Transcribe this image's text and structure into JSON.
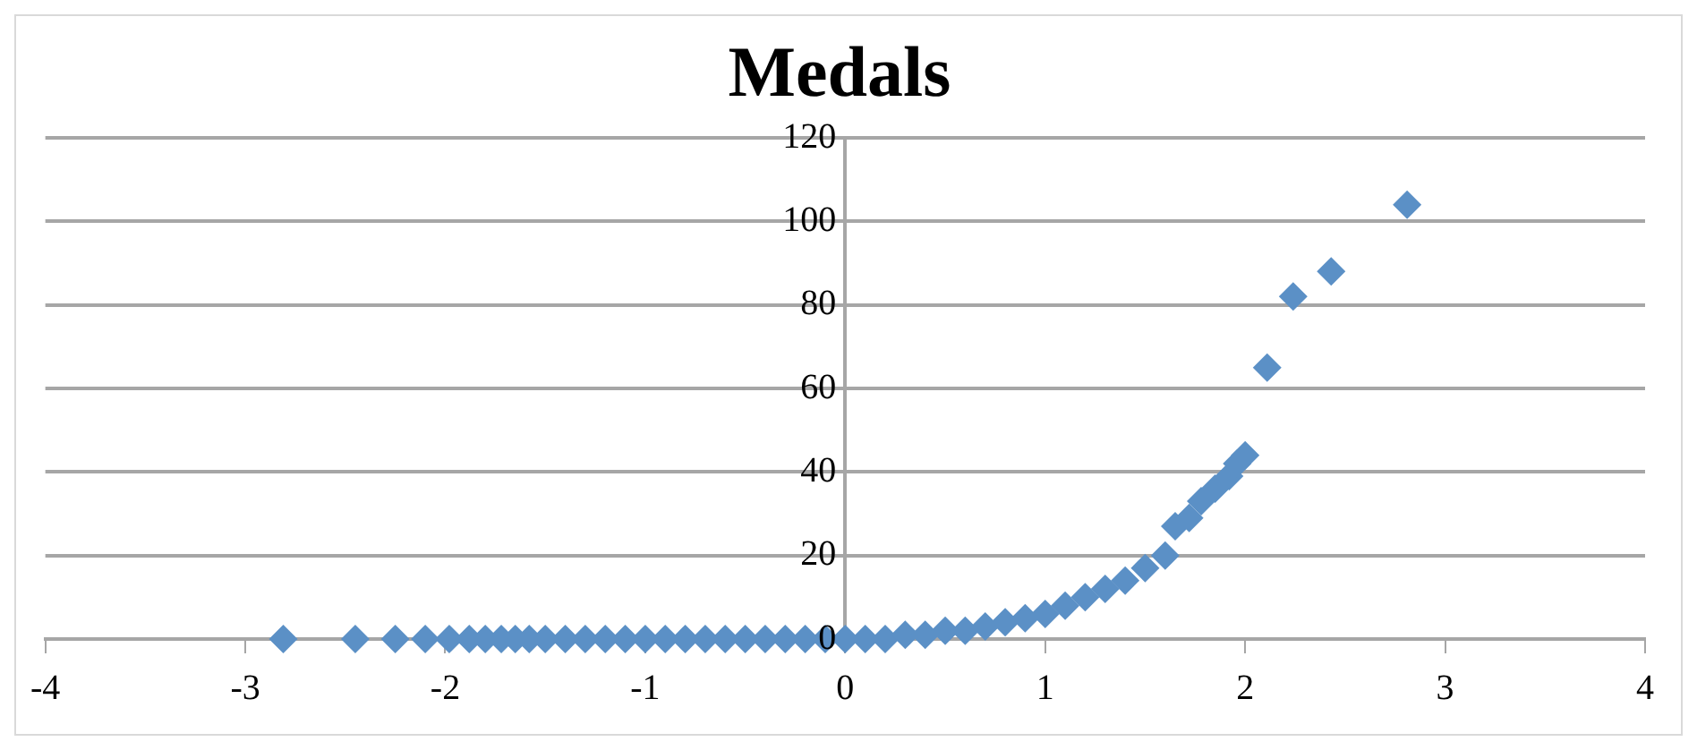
{
  "chart_data": {
    "type": "scatter",
    "title": "Medals",
    "x": [
      -2.81,
      -2.45,
      -2.25,
      -2.1,
      -1.98,
      -1.88,
      -1.8,
      -1.72,
      -1.65,
      -1.58,
      -1.5,
      -1.4,
      -1.3,
      -1.2,
      -1.1,
      -1.0,
      -0.9,
      -0.8,
      -0.7,
      -0.6,
      -0.5,
      -0.4,
      -0.3,
      -0.2,
      -0.1,
      0,
      0.1,
      0.2,
      0.3,
      0.4,
      0.5,
      0.6,
      0.7,
      0.8,
      0.9,
      1.0,
      1.1,
      1.2,
      1.3,
      1.4,
      1.5,
      1.6,
      1.65,
      1.72,
      1.78,
      1.85,
      1.92,
      1.96,
      2.0,
      2.11,
      2.24,
      2.43,
      2.81
    ],
    "series": [
      {
        "color": "#5b90c6",
        "values": [
          0,
          0,
          0,
          0,
          0,
          0,
          0,
          0,
          0,
          0,
          0,
          0,
          0,
          0,
          0,
          0,
          0,
          0,
          0,
          0,
          0,
          0,
          0,
          0,
          0,
          0,
          0,
          0,
          1,
          1,
          2,
          2,
          3,
          4,
          5,
          6,
          8,
          10,
          12,
          14,
          17,
          20,
          27,
          29,
          33,
          36,
          39,
          42,
          44,
          65,
          82,
          88,
          104
        ]
      }
    ],
    "xlim": [
      -4,
      4
    ],
    "xticks": [
      -4,
      -3,
      -2,
      -1,
      0,
      1,
      2,
      3,
      4
    ],
    "ylim": [
      0,
      120
    ],
    "yticks": [
      0,
      20,
      40,
      60,
      80,
      100,
      120
    ],
    "grid": "y",
    "marker": "diamond",
    "legend": false
  }
}
